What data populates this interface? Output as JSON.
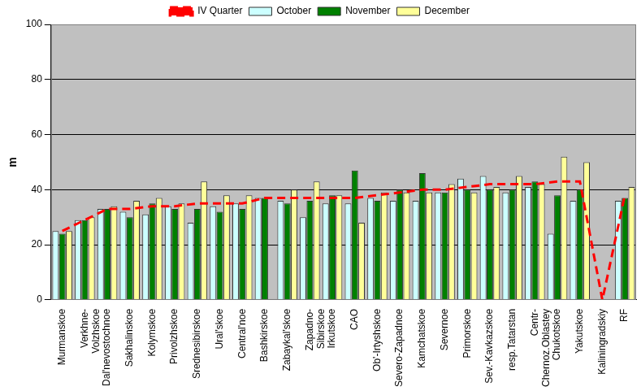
{
  "chart_data": {
    "type": "bar",
    "y_label": "m",
    "categories": [
      "Murmanskoe",
      [
        "Verkhne-",
        "Volzhskoe"
      ],
      "Dal'nevostochnoe",
      "Sakhalinskoe",
      "Kolymskoe",
      "Privolzhskoe",
      "Srednesibirskoe",
      "Ural'skoe",
      "Central'noe",
      "Bashkirskoe",
      "Zabaykal'skoe",
      [
        "Zapadno-",
        "Sibirskoe"
      ],
      "Irkutskoe",
      "CAO",
      "Ob'-Irtyshskoe",
      "Severo-Zapadnoe",
      "Kamchatskoe",
      "Severnoe",
      "Primorskoe",
      "Sev.-Kavkazskoe",
      "resp.Tatarstan",
      [
        "Centr-",
        "Chernoz.Oblastey"
      ],
      "Chukotskoe",
      "Yakutskoe",
      "Kaliningradskiy",
      "RF"
    ],
    "series": [
      {
        "name": "October",
        "type": "bar",
        "color": "#ccffff",
        "values": [
          25,
          29,
          33,
          32,
          31,
          34,
          28,
          34,
          35,
          37,
          36,
          30,
          35,
          35,
          37,
          36,
          36,
          39,
          44,
          45,
          39,
          41,
          24,
          36,
          null,
          36
        ]
      },
      {
        "name": "November",
        "type": "bar",
        "color": "#008000",
        "values": [
          24,
          29,
          33,
          30,
          35,
          33,
          33,
          32,
          33,
          37,
          35,
          36,
          38,
          47,
          36,
          40,
          46,
          39,
          40,
          40,
          40,
          43,
          38,
          40,
          null,
          37
        ]
      },
      {
        "name": "December",
        "type": "bar",
        "color": "#ffff99",
        "values": [
          25,
          30,
          34,
          36,
          37,
          35,
          43,
          38,
          38,
          null,
          40,
          43,
          38,
          28,
          39,
          39,
          39,
          42,
          39,
          41,
          45,
          42,
          52,
          50,
          null,
          41
        ]
      },
      {
        "name": "IV Quarter",
        "type": "line",
        "line_style": "dashed",
        "color": "#ff0000",
        "values": [
          25,
          29,
          33,
          33,
          34,
          34,
          35,
          35,
          35,
          37,
          37,
          37,
          37,
          37,
          38,
          39,
          40,
          40,
          41,
          42,
          42,
          42,
          43,
          43,
          0,
          38
        ]
      }
    ],
    "ylim": [
      0,
      100
    ],
    "yticks": [
      0,
      20,
      40,
      60,
      80,
      100
    ],
    "grid": true,
    "legend": "top"
  }
}
